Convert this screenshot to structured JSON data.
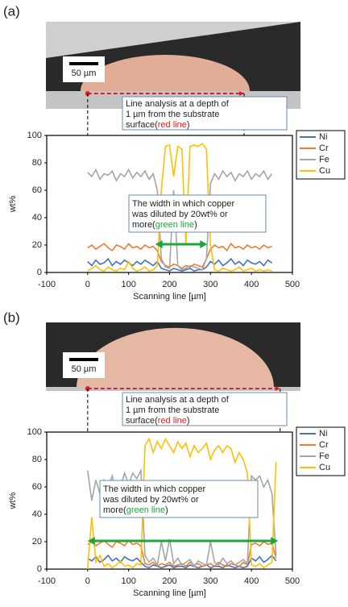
{
  "chart_data": [
    {
      "type": "line",
      "panel_label": "(a)",
      "scale_bar": "50 µm",
      "line_note": [
        "Line analysis at a depth of",
        "1 µm from the substrate",
        "surface(",
        "red line",
        ")"
      ],
      "width_note": [
        "The width in which copper",
        "was diluted by 20wt% or",
        "more(",
        "green line",
        ")"
      ],
      "analysis_range": [
        0,
        382
      ],
      "width_range": [
        165,
        292
      ],
      "x_label": "Scanning line [µm]",
      "y_label": "wt%",
      "xlim": [
        -100,
        500
      ],
      "xticks": [
        -100,
        0,
        100,
        200,
        300,
        400,
        500
      ],
      "ylim": [
        0,
        100
      ],
      "yticks": [
        0,
        20,
        40,
        60,
        80,
        100
      ],
      "x": [
        0,
        10,
        20,
        30,
        40,
        50,
        60,
        70,
        80,
        90,
        100,
        110,
        120,
        130,
        140,
        150,
        160,
        170,
        180,
        190,
        200,
        210,
        220,
        230,
        240,
        250,
        260,
        270,
        280,
        290,
        300,
        310,
        320,
        330,
        340,
        350,
        360,
        370,
        380,
        390,
        400,
        410,
        420,
        430,
        440,
        450
      ],
      "series": [
        {
          "name": "Ni",
          "color": "#4472c4",
          "values": [
            8,
            5,
            9,
            6,
            7,
            10,
            5,
            8,
            6,
            9,
            7,
            5,
            8,
            6,
            9,
            7,
            5,
            8,
            3,
            2,
            1,
            3,
            2,
            1,
            2,
            3,
            1,
            2,
            2,
            4,
            8,
            6,
            9,
            5,
            7,
            10,
            6,
            8,
            5,
            9,
            7,
            6,
            8,
            5,
            9,
            7
          ]
        },
        {
          "name": "Cr",
          "color": "#ed7d31",
          "values": [
            18,
            20,
            17,
            19,
            21,
            18,
            16,
            20,
            19,
            17,
            21,
            18,
            19,
            17,
            20,
            18,
            19,
            16,
            8,
            5,
            4,
            6,
            5,
            3,
            5,
            4,
            6,
            5,
            4,
            10,
            17,
            20,
            18,
            19,
            16,
            21,
            18,
            19,
            17,
            20,
            18,
            19,
            17,
            20,
            18,
            19
          ]
        },
        {
          "name": "Fe",
          "color": "#a5a5a5",
          "values": [
            73,
            70,
            75,
            68,
            72,
            71,
            74,
            67,
            72,
            70,
            75,
            69,
            73,
            70,
            74,
            68,
            72,
            60,
            10,
            4,
            3,
            60,
            5,
            2,
            3,
            5,
            4,
            3,
            2,
            10,
            65,
            72,
            68,
            74,
            70,
            73,
            67,
            72,
            70,
            74,
            68,
            72,
            70,
            74,
            68,
            72
          ]
        },
        {
          "name": "Cu",
          "color": "#ffc000",
          "values": [
            1,
            3,
            5,
            2,
            1,
            4,
            2,
            1,
            3,
            2,
            8,
            3,
            1,
            2,
            4,
            1,
            2,
            5,
            60,
            92,
            93,
            70,
            92,
            90,
            20,
            92,
            93,
            92,
            94,
            90,
            20,
            2,
            1,
            3,
            2,
            1,
            2,
            4,
            1,
            2,
            3,
            1,
            2,
            1,
            2,
            1
          ]
        }
      ]
    },
    {
      "type": "line",
      "panel_label": "(b)",
      "scale_bar": "50 µm",
      "line_note": [
        "Line analysis at a depth of",
        "1 µm from the substrate",
        "surface(",
        "red line",
        ")"
      ],
      "width_note": [
        "The width in which copper",
        "was diluted by 20wt% or",
        "more(",
        "green line",
        ")"
      ],
      "analysis_range": [
        0,
        470
      ],
      "width_range": [
        0,
        465
      ],
      "x_label": "Scanning line [µm]",
      "y_label": "wt%",
      "xlim": [
        -100,
        500
      ],
      "xticks": [
        -100,
        0,
        100,
        200,
        300,
        400,
        500
      ],
      "ylim": [
        0,
        100
      ],
      "yticks": [
        0,
        20,
        40,
        60,
        80,
        100
      ],
      "x": [
        0,
        10,
        20,
        30,
        40,
        50,
        60,
        70,
        80,
        90,
        100,
        110,
        120,
        130,
        140,
        150,
        160,
        170,
        180,
        190,
        200,
        210,
        220,
        230,
        240,
        250,
        260,
        270,
        280,
        290,
        300,
        310,
        320,
        330,
        340,
        350,
        360,
        370,
        380,
        390,
        400,
        410,
        420,
        430,
        440,
        450,
        460
      ],
      "series": [
        {
          "name": "Ni",
          "color": "#4472c4",
          "values": [
            8,
            6,
            9,
            5,
            7,
            10,
            6,
            8,
            5,
            9,
            7,
            6,
            8,
            5,
            2,
            1,
            3,
            2,
            1,
            2,
            3,
            1,
            2,
            2,
            1,
            3,
            2,
            1,
            2,
            3,
            1,
            2,
            2,
            1,
            3,
            2,
            1,
            2,
            1,
            2,
            8,
            6,
            9,
            5,
            7,
            10,
            6
          ]
        },
        {
          "name": "Cr",
          "color": "#ed7d31",
          "values": [
            18,
            20,
            17,
            19,
            21,
            18,
            16,
            20,
            19,
            17,
            21,
            18,
            19,
            17,
            4,
            3,
            5,
            2,
            4,
            3,
            5,
            2,
            3,
            4,
            2,
            5,
            3,
            4,
            2,
            3,
            4,
            2,
            5,
            3,
            2,
            4,
            3,
            2,
            5,
            3,
            18,
            19,
            17,
            20,
            18,
            19,
            8
          ]
        },
        {
          "name": "Fe",
          "color": "#a5a5a5",
          "values": [
            72,
            50,
            65,
            55,
            65,
            60,
            68,
            55,
            60,
            70,
            62,
            70,
            66,
            72,
            10,
            5,
            8,
            3,
            20,
            6,
            22,
            4,
            8,
            3,
            5,
            7,
            2,
            6,
            4,
            3,
            20,
            5,
            3,
            8,
            4,
            6,
            3,
            5,
            7,
            4,
            68,
            65,
            68,
            60,
            65,
            55,
            10
          ]
        },
        {
          "name": "Cu",
          "color": "#ffc000",
          "values": [
            0,
            38,
            5,
            10,
            2,
            4,
            1,
            3,
            6,
            2,
            3,
            1,
            4,
            3,
            90,
            95,
            85,
            93,
            88,
            95,
            90,
            85,
            93,
            88,
            92,
            82,
            90,
            85,
            88,
            92,
            80,
            87,
            90,
            85,
            90,
            88,
            78,
            85,
            80,
            70,
            3,
            2,
            4,
            1,
            3,
            5,
            78
          ]
        }
      ]
    }
  ]
}
